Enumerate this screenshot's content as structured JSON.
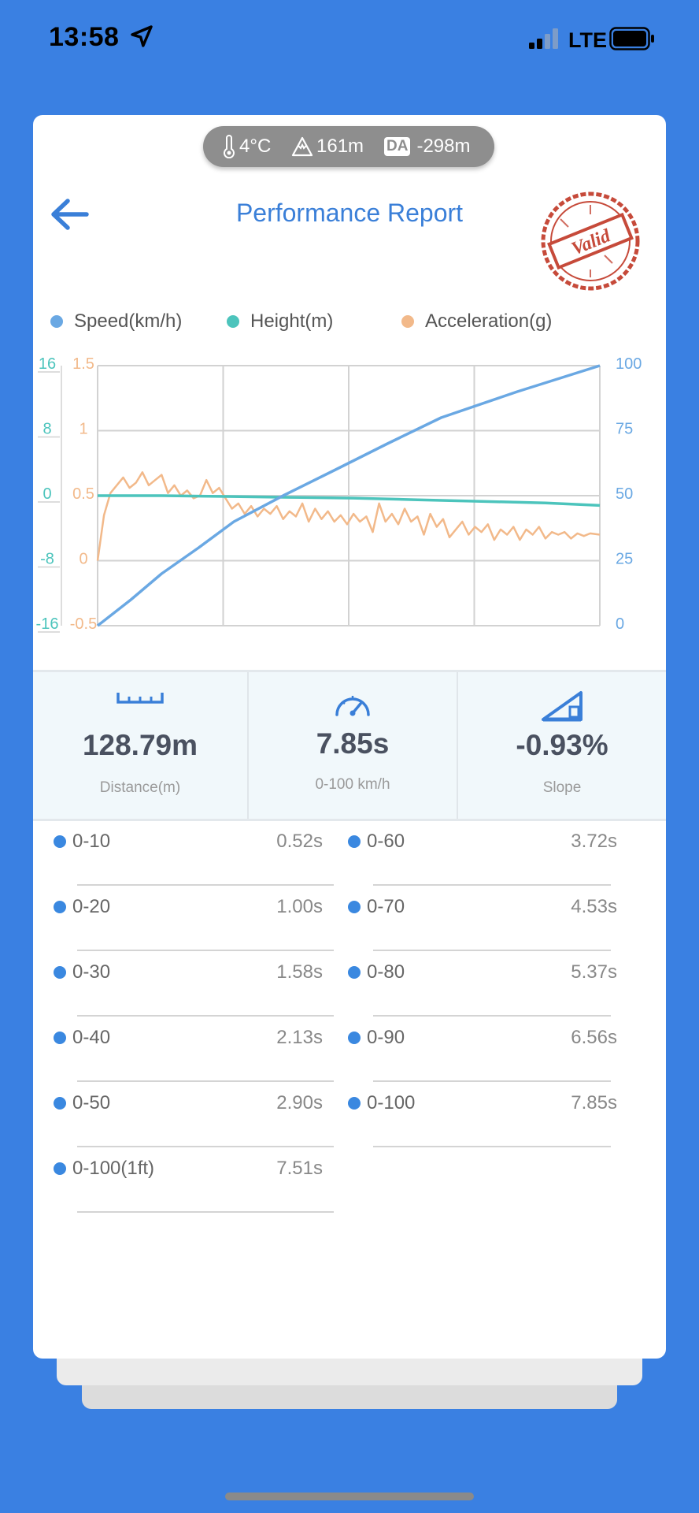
{
  "status_bar": {
    "time": "13:58",
    "network": "LTE"
  },
  "conditions": {
    "temperature": "4°C",
    "altitude": "161m",
    "da_label": "DA",
    "density_altitude": "-298m"
  },
  "header": {
    "title": "Performance Report",
    "stamp": "Valid"
  },
  "colors": {
    "speed": "#6aa8e3",
    "height": "#4cc4bc",
    "acceleration": "#f2b98a",
    "accent": "#3a7fd8",
    "stamp": "#c64a3a",
    "background": "#3a80e2"
  },
  "chart_data": {
    "type": "line",
    "legend": [
      "Speed(km/h)",
      "Height(m)",
      "Acceleration(g)"
    ],
    "height_axis": {
      "ticks": [
        "16",
        "8",
        "0",
        "-8",
        "-16"
      ],
      "range": [
        -16,
        16
      ]
    },
    "accel_axis": {
      "ticks": [
        "1.5",
        "1",
        "0.5",
        "0",
        "-0.5"
      ],
      "range": [
        -0.5,
        1.5
      ]
    },
    "speed_axis": {
      "ticks": [
        "100",
        "75",
        "50",
        "25",
        "0"
      ],
      "range": [
        0,
        100
      ]
    },
    "x_range": [
      0,
      7.85
    ],
    "series": [
      {
        "name": "Speed(km/h)",
        "x": [
          0,
          0.52,
          1.0,
          1.58,
          2.13,
          2.9,
          3.72,
          4.53,
          5.37,
          6.56,
          7.85
        ],
        "y": [
          0,
          10,
          20,
          30,
          40,
          50,
          60,
          70,
          80,
          90,
          100
        ]
      },
      {
        "name": "Height(m)",
        "x": [
          0,
          1,
          2,
          3,
          4,
          5,
          6,
          7,
          7.85
        ],
        "y": [
          0,
          0,
          -0.1,
          -0.2,
          -0.3,
          -0.5,
          -0.7,
          -0.9,
          -1.2
        ]
      },
      {
        "name": "Acceleration(g)",
        "x": [
          0,
          0.1,
          0.2,
          0.3,
          0.4,
          0.5,
          0.6,
          0.7,
          0.8,
          0.9,
          1.0,
          1.1,
          1.2,
          1.3,
          1.4,
          1.5,
          1.6,
          1.7,
          1.8,
          1.9,
          2.0,
          2.1,
          2.2,
          2.3,
          2.4,
          2.5,
          2.6,
          2.7,
          2.8,
          2.9,
          3.0,
          3.1,
          3.2,
          3.3,
          3.4,
          3.5,
          3.6,
          3.7,
          3.8,
          3.9,
          4.0,
          4.1,
          4.2,
          4.3,
          4.4,
          4.5,
          4.6,
          4.7,
          4.8,
          4.9,
          5.0,
          5.1,
          5.2,
          5.3,
          5.4,
          5.5,
          5.6,
          5.7,
          5.8,
          5.9,
          6.0,
          6.1,
          6.2,
          6.3,
          6.4,
          6.5,
          6.6,
          6.7,
          6.8,
          6.9,
          7.0,
          7.1,
          7.2,
          7.3,
          7.4,
          7.5,
          7.6,
          7.7,
          7.85
        ],
        "y": [
          0.0,
          0.35,
          0.52,
          0.58,
          0.64,
          0.56,
          0.6,
          0.68,
          0.58,
          0.62,
          0.66,
          0.52,
          0.58,
          0.5,
          0.54,
          0.48,
          0.5,
          0.62,
          0.52,
          0.56,
          0.48,
          0.4,
          0.44,
          0.36,
          0.42,
          0.34,
          0.4,
          0.36,
          0.42,
          0.32,
          0.38,
          0.34,
          0.44,
          0.3,
          0.4,
          0.32,
          0.38,
          0.3,
          0.35,
          0.28,
          0.36,
          0.3,
          0.34,
          0.22,
          0.44,
          0.3,
          0.36,
          0.28,
          0.4,
          0.3,
          0.34,
          0.2,
          0.36,
          0.26,
          0.32,
          0.18,
          0.24,
          0.3,
          0.2,
          0.26,
          0.22,
          0.28,
          0.16,
          0.24,
          0.2,
          0.26,
          0.16,
          0.24,
          0.2,
          0.26,
          0.17,
          0.22,
          0.2,
          0.22,
          0.17,
          0.21,
          0.19,
          0.21,
          0.2
        ]
      }
    ],
    "grid": true
  },
  "stats": [
    {
      "icon": "ruler-icon",
      "value": "128.79m",
      "label": "Distance(m)"
    },
    {
      "icon": "speedometer-icon",
      "value": "7.85s",
      "label": "0-100 km/h"
    },
    {
      "icon": "slope-icon",
      "value": "-0.93%",
      "label": "Slope"
    }
  ],
  "splits": {
    "left": [
      {
        "label": "0-10",
        "time": "0.52s"
      },
      {
        "label": "0-20",
        "time": "1.00s"
      },
      {
        "label": "0-30",
        "time": "1.58s"
      },
      {
        "label": "0-40",
        "time": "2.13s"
      },
      {
        "label": "0-50",
        "time": "2.90s"
      },
      {
        "label": "0-100(1ft)",
        "time": "7.51s"
      }
    ],
    "right": [
      {
        "label": "0-60",
        "time": "3.72s"
      },
      {
        "label": "0-70",
        "time": "4.53s"
      },
      {
        "label": "0-80",
        "time": "5.37s"
      },
      {
        "label": "0-90",
        "time": "6.56s"
      },
      {
        "label": "0-100",
        "time": "7.85s"
      }
    ]
  }
}
